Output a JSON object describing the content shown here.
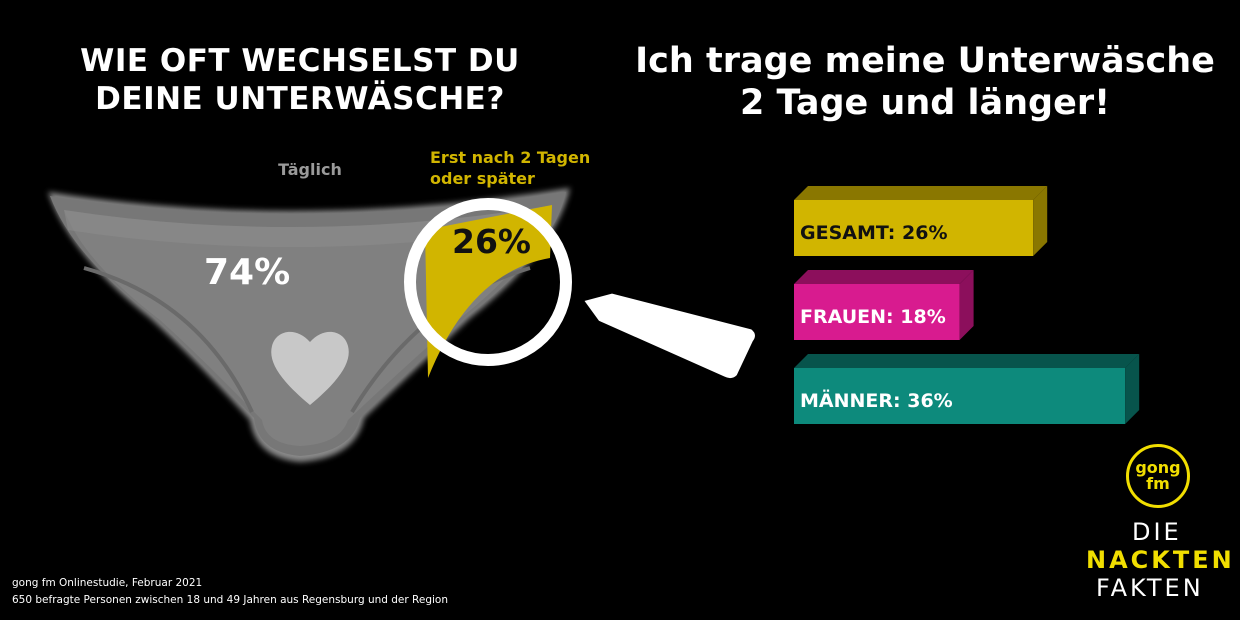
{
  "left_title": [
    "WIE OFT WECHSELST DU",
    "DEINE UNTERWÄSCHE?"
  ],
  "right_title": [
    "Ich trage meine Unterwäsche",
    "2 Tage und länger!"
  ],
  "chart_data": [
    {
      "type": "pie",
      "title": "WIE OFT WECHSELST DU DEINE UNTERWÄSCHE?",
      "slices": [
        {
          "label": "Täglich",
          "value": 74,
          "display": "74%",
          "color": "#808080"
        },
        {
          "label": "Erst nach 2 Tagen oder später",
          "label_lines": [
            "Erst nach 2 Tagen",
            "oder später"
          ],
          "value": 26,
          "display": "26%",
          "color": "#d1b500"
        }
      ]
    },
    {
      "type": "bar",
      "title": "Ich trage meine Unterwäsche 2 Tage und länger!",
      "categories": [
        "GESAMT",
        "FRAUEN",
        "MÄNNER"
      ],
      "values": [
        26,
        18,
        36
      ],
      "labels": [
        "GESAMT: 26%",
        "FRAUEN: 18%",
        "MÄNNER: 36%"
      ],
      "colors": [
        "#d1b500",
        "#d81b8f",
        "#0d8a7c"
      ],
      "side_colors": [
        "#8a7700",
        "#8c0f5c",
        "#07544c"
      ]
    }
  ],
  "source": [
    "gong fm Onlinestudie, Februar 2021",
    "650 befragte Personen zwischen 18 und 49 Jahren aus Regensburg und der Region"
  ],
  "logo": {
    "gong_lines": [
      "gong",
      "fm"
    ],
    "die": "DIE",
    "nackten": "NACKTEN",
    "fakten": "FAKTEN",
    "accent_color": "#f1de00"
  }
}
